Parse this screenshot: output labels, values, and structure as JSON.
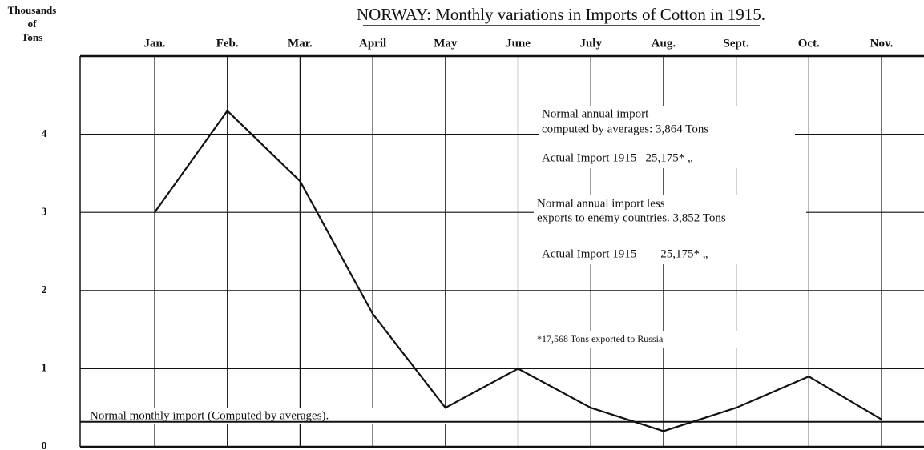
{
  "chart_data": {
    "type": "line",
    "title": "NORWAY: Monthly variations in Imports of Cotton in 1915.",
    "y_label_lines": [
      "Thousands",
      "of",
      "Tons"
    ],
    "categories": [
      "Jan.",
      "Feb.",
      "Mar.",
      "April",
      "May",
      "June",
      "July",
      "Aug.",
      "Sept.",
      "Oct.",
      "Nov."
    ],
    "values": [
      3.0,
      4.3,
      3.4,
      1.7,
      0.5,
      1.0,
      0.5,
      0.2,
      0.5,
      0.9,
      0.35
    ],
    "color": "#111111",
    "ylim": [
      0,
      5
    ],
    "yticks": [
      0,
      1,
      2,
      3,
      4
    ],
    "grid": true,
    "reference_line": {
      "value": 0.32,
      "label": "Normal monthly import (Computed by averages)."
    },
    "annotations": [
      "Normal annual import",
      "computed by averages: 3,864 Tons",
      "Actual Import 1915   25,175* „",
      "Normal annual import less",
      "exports to enemy countries. 3,852 Tons",
      "Actual Import 1915        25,175* „",
      "*17,568 Tons exported to Russia"
    ]
  }
}
